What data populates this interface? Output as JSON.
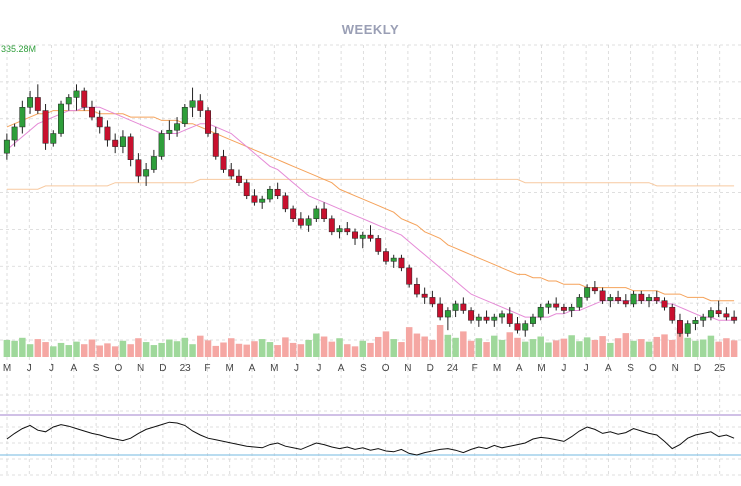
{
  "title": "WEEKLY",
  "volume_max_label": "335.28M",
  "colors": {
    "up": "#2e9e3a",
    "down": "#c8102e",
    "vol_up": "#9fd89b",
    "vol_down": "#f5a7a3",
    "ma_short": "#e58ad6",
    "ma_mid": "#f5a25a",
    "ma_long": "#f7c9a0",
    "osc_line": "#111111",
    "osc_upper": "#b59ad8",
    "osc_lower": "#8fc6e6",
    "grid": "#d5d5d5"
  },
  "x_axis_labels": [
    "M",
    "J",
    "J",
    "A",
    "S",
    "O",
    "N",
    "D",
    "23",
    "F",
    "M",
    "A",
    "M",
    "J",
    "J",
    "A",
    "S",
    "O",
    "N",
    "D",
    "24",
    "F",
    "M",
    "A",
    "M",
    "J",
    "J",
    "A",
    "S",
    "O",
    "N",
    "D",
    "25"
  ],
  "chart_data": {
    "type": "candlestick",
    "title": "WEEKLY",
    "interval": "weekly",
    "price_range": [
      0,
      100
    ],
    "series": [
      {
        "name": "",
        "kind": "candles",
        "values": [
          [
            47,
            53,
            45,
            51
          ],
          [
            51,
            56,
            49,
            55
          ],
          [
            55,
            63,
            53,
            61
          ],
          [
            61,
            66,
            59,
            64
          ],
          [
            64,
            68,
            59,
            60
          ],
          [
            60,
            62,
            48,
            50
          ],
          [
            50,
            54,
            49,
            53
          ],
          [
            53,
            63,
            52,
            62
          ],
          [
            62,
            65,
            60,
            64
          ],
          [
            64,
            68,
            60,
            66
          ],
          [
            66,
            67,
            60,
            61
          ],
          [
            61,
            63,
            57,
            58
          ],
          [
            58,
            60,
            53,
            55
          ],
          [
            55,
            57,
            49,
            51
          ],
          [
            51,
            53,
            47,
            49
          ],
          [
            49,
            54,
            47,
            52
          ],
          [
            52,
            53,
            43,
            45
          ],
          [
            45,
            47,
            38,
            40
          ],
          [
            40,
            44,
            37,
            42
          ],
          [
            42,
            48,
            41,
            46
          ],
          [
            46,
            54,
            45,
            53
          ],
          [
            53,
            57,
            51,
            54
          ],
          [
            54,
            58,
            52,
            56
          ],
          [
            56,
            62,
            55,
            61
          ],
          [
            61,
            67,
            58,
            63
          ],
          [
            63,
            65,
            58,
            60
          ],
          [
            60,
            61,
            52,
            53
          ],
          [
            53,
            55,
            45,
            46
          ],
          [
            46,
            48,
            41,
            42
          ],
          [
            42,
            44,
            39,
            40
          ],
          [
            40,
            42,
            37,
            38
          ],
          [
            38,
            39,
            33,
            34
          ],
          [
            34,
            36,
            31,
            32
          ],
          [
            32,
            34,
            30,
            33
          ],
          [
            33,
            37,
            32,
            36
          ],
          [
            36,
            38,
            33,
            34
          ],
          [
            34,
            35,
            29,
            30
          ],
          [
            30,
            31,
            26,
            27
          ],
          [
            27,
            29,
            24,
            25
          ],
          [
            25,
            28,
            23,
            27
          ],
          [
            27,
            31,
            26,
            30
          ],
          [
            30,
            32,
            26,
            27
          ],
          [
            27,
            28,
            22,
            23
          ],
          [
            23,
            25,
            21,
            24
          ],
          [
            24,
            26,
            22,
            23
          ],
          [
            23,
            24,
            19,
            21
          ],
          [
            21,
            23,
            18,
            22
          ],
          [
            22,
            25,
            20,
            21
          ],
          [
            21,
            22,
            16,
            17
          ],
          [
            17,
            18,
            13,
            14
          ],
          [
            14,
            16,
            12,
            15
          ],
          [
            15,
            16,
            11,
            12
          ],
          [
            12,
            13,
            6,
            7
          ],
          [
            7,
            9,
            3,
            4
          ],
          [
            4,
            6,
            1,
            3
          ],
          [
            3,
            5,
            0,
            1
          ],
          [
            1,
            3,
            -4,
            -3
          ],
          [
            -3,
            0,
            -7,
            -1
          ],
          [
            -1,
            2,
            -3,
            1
          ],
          [
            1,
            3,
            -2,
            -1
          ],
          [
            -1,
            0,
            -5,
            -4
          ],
          [
            -4,
            -2,
            -6,
            -3
          ],
          [
            -3,
            -1,
            -5,
            -4
          ],
          [
            -4,
            -2,
            -6,
            -3
          ],
          [
            -3,
            -1,
            -5,
            -2
          ],
          [
            -2,
            0,
            -6,
            -5
          ],
          [
            -5,
            -3,
            -8,
            -7
          ],
          [
            -7,
            -4,
            -9,
            -5
          ],
          [
            -5,
            -2,
            -6,
            -3
          ],
          [
            -3,
            1,
            -4,
            0
          ],
          [
            0,
            2,
            -2,
            1
          ],
          [
            1,
            3,
            -1,
            0
          ],
          [
            0,
            1,
            -2,
            -1
          ],
          [
            -1,
            1,
            -3,
            0
          ],
          [
            0,
            4,
            -1,
            3
          ],
          [
            3,
            7,
            2,
            6
          ],
          [
            6,
            8,
            4,
            5
          ],
          [
            5,
            6,
            1,
            2
          ],
          [
            2,
            4,
            0,
            3
          ],
          [
            3,
            5,
            1,
            2
          ],
          [
            2,
            4,
            0,
            1
          ],
          [
            1,
            5,
            0,
            4
          ],
          [
            4,
            5,
            1,
            2
          ],
          [
            2,
            4,
            0,
            3
          ],
          [
            3,
            5,
            1,
            2
          ],
          [
            2,
            3,
            -1,
            0
          ],
          [
            0,
            1,
            -5,
            -4
          ],
          [
            -4,
            -2,
            -9,
            -8
          ],
          [
            -8,
            -4,
            -9,
            -5
          ],
          [
            -5,
            -3,
            -7,
            -4
          ],
          [
            -4,
            -2,
            -6,
            -3
          ],
          [
            -3,
            0,
            -4,
            -1
          ],
          [
            -1,
            2,
            -3,
            -2
          ],
          [
            -2,
            0,
            -4,
            -3
          ],
          [
            -3,
            -1,
            -5,
            -4
          ]
        ]
      },
      {
        "name": "",
        "kind": "ma_short",
        "values": [
          48,
          50,
          52,
          54,
          56,
          57,
          58,
          59,
          60,
          60,
          61,
          61,
          61,
          60,
          59,
          58,
          57,
          56,
          55,
          54,
          53,
          53,
          53,
          54,
          55,
          56,
          56,
          55,
          54,
          53,
          51,
          49,
          47,
          45,
          43,
          42,
          40,
          38,
          36,
          34,
          33,
          32,
          31,
          30,
          29,
          28,
          27,
          26,
          25,
          24,
          23,
          22,
          20,
          18,
          16,
          14,
          12,
          10,
          8,
          6,
          4,
          3,
          2,
          1,
          0,
          -1,
          -2,
          -3,
          -3,
          -3,
          -3,
          -2,
          -2,
          -1,
          -1,
          0,
          1,
          2,
          2,
          2,
          2,
          2,
          2,
          2,
          2,
          1,
          1,
          0,
          -1,
          -2,
          -3,
          -3,
          -4,
          -4,
          -4
        ]
      },
      {
        "name": "",
        "kind": "ma_mid",
        "values": [
          55,
          56,
          57,
          58,
          59,
          59,
          60,
          60,
          60,
          60,
          60,
          60,
          59,
          59,
          59,
          59,
          58,
          58,
          58,
          58,
          57,
          57,
          57,
          56,
          56,
          55,
          54,
          53,
          52,
          51,
          50,
          49,
          48,
          47,
          46,
          45,
          44,
          43,
          42,
          41,
          40,
          39,
          38,
          36,
          35,
          34,
          33,
          32,
          31,
          30,
          29,
          27,
          26,
          25,
          23,
          22,
          21,
          19,
          18,
          17,
          16,
          15,
          14,
          13,
          12,
          11,
          10,
          10,
          9,
          9,
          8,
          8,
          7,
          7,
          7,
          6,
          6,
          6,
          6,
          6,
          6,
          5,
          5,
          5,
          5,
          4,
          4,
          4,
          3,
          3,
          3,
          2,
          2,
          2,
          2
        ]
      },
      {
        "name": "",
        "kind": "ma_long",
        "values": [
          36,
          36,
          36,
          36,
          36,
          37,
          37,
          37,
          37,
          37,
          37,
          37,
          37,
          37,
          38,
          38,
          38,
          38,
          38,
          38,
          38,
          38,
          38,
          38,
          38,
          39,
          39,
          39,
          39,
          39,
          39,
          39,
          39,
          39,
          39,
          39,
          39,
          39,
          39,
          39,
          39,
          39,
          39,
          39,
          39,
          39,
          39,
          39,
          39,
          39,
          39,
          39,
          39,
          39,
          39,
          39,
          39,
          39,
          39,
          39,
          39,
          39,
          39,
          39,
          39,
          39,
          39,
          38,
          38,
          38,
          38,
          38,
          38,
          38,
          38,
          38,
          38,
          38,
          38,
          38,
          38,
          38,
          38,
          38,
          37,
          37,
          37,
          37,
          37,
          37,
          37,
          37,
          37,
          37,
          37
        ]
      },
      {
        "name": "",
        "kind": "volume",
        "values": [
          40,
          38,
          45,
          30,
          42,
          35,
          25,
          33,
          28,
          36,
          30,
          41,
          27,
          32,
          25,
          38,
          30,
          44,
          35,
          28,
          33,
          41,
          37,
          45,
          30,
          50,
          39,
          26,
          34,
          44,
          31,
          29,
          37,
          42,
          35,
          28,
          46,
          33,
          30,
          40,
          55,
          48,
          36,
          44,
          30,
          25,
          38,
          33,
          47,
          60,
          42,
          35,
          70,
          55,
          48,
          40,
          75,
          52,
          45,
          60,
          38,
          44,
          35,
          50,
          40,
          58,
          45,
          36,
          42,
          48,
          34,
          39,
          43,
          51,
          37,
          46,
          40,
          49,
          33,
          44,
          56,
          38,
          42,
          36,
          47,
          53,
          40,
          68,
          45,
          38,
          41,
          50,
          36,
          44,
          39
        ]
      },
      {
        "name": "",
        "kind": "oscillator",
        "values": [
          45,
          52,
          58,
          62,
          56,
          54,
          60,
          63,
          61,
          58,
          55,
          52,
          50,
          47,
          45,
          43,
          46,
          52,
          57,
          60,
          63,
          66,
          65,
          62,
          55,
          50,
          46,
          44,
          42,
          40,
          38,
          36,
          35,
          34,
          38,
          40,
          36,
          34,
          32,
          36,
          40,
          38,
          35,
          33,
          35,
          32,
          34,
          31,
          33,
          30,
          29,
          32,
          27,
          25,
          28,
          30,
          32,
          33,
          31,
          28,
          32,
          35,
          33,
          37,
          34,
          36,
          38,
          40,
          45,
          47,
          46,
          44,
          42,
          48,
          55,
          60,
          57,
          52,
          54,
          51,
          53,
          58,
          55,
          52,
          50,
          42,
          33,
          38,
          46,
          50,
          52,
          54,
          48,
          50,
          46
        ]
      }
    ],
    "oscillator_bands": [
      75,
      25
    ],
    "grid": true
  }
}
